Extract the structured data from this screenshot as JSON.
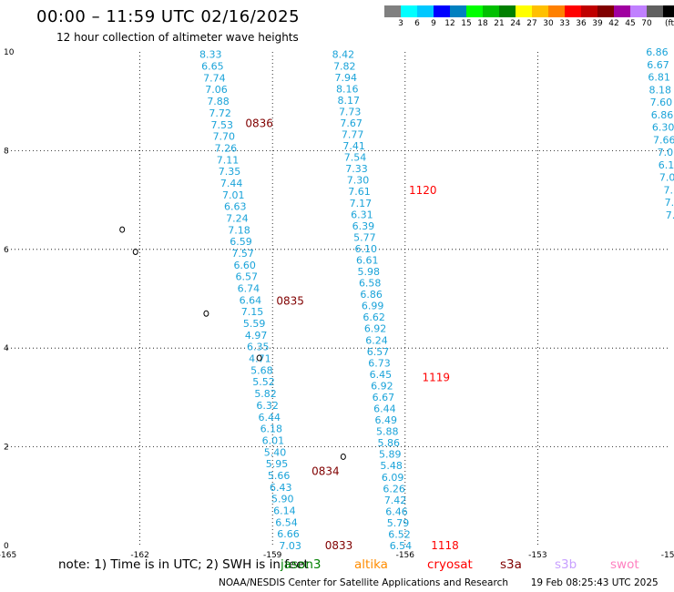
{
  "title": "00:00 – 11:59 UTC 02/16/2025",
  "subtitle": "12 hour collection of altimeter wave heights",
  "colorbar": {
    "unit": "(ft)",
    "colors": [
      "#808080",
      "#00ffff",
      "#00c8ff",
      "#0000ff",
      "#0080c0",
      "#00ff00",
      "#00c000",
      "#008000",
      "#ffff00",
      "#ffc000",
      "#ff8000",
      "#ff0000",
      "#c00000",
      "#800000",
      "#a000a0",
      "#c080ff",
      "#606060",
      "#000000"
    ],
    "ticks": [
      "3",
      "6",
      "9",
      "12",
      "15",
      "18",
      "21",
      "24",
      "27",
      "30",
      "33",
      "36",
      "39",
      "42",
      "45",
      "70"
    ]
  },
  "chart_data": {
    "type": "scatter",
    "xaxis": {
      "range": [
        -165,
        -150
      ],
      "tick_labels": [
        "-165",
        "-162",
        "-159",
        "-156",
        "-153",
        "-150"
      ],
      "ticks": [
        -165,
        -162,
        -159,
        -156,
        -153,
        -150
      ]
    },
    "yaxis": {
      "range": [
        0,
        10
      ],
      "tick_labels": [
        "0",
        "2",
        "4",
        "6",
        "8",
        "10"
      ],
      "ticks": [
        0,
        2,
        4,
        6,
        8,
        10
      ]
    },
    "grid": true,
    "tracks": [
      {
        "color": "#1aa3d9",
        "lon_start": -160.4,
        "lat_start": 9.95,
        "lon_end": -158.6,
        "lat_end": 0.0,
        "values": [
          "8.33",
          "6.65",
          "7.74",
          "7.06",
          "7.88",
          "7.72",
          "7.53",
          "7.70",
          "7.26",
          "7.11",
          "7.35",
          "7.44",
          "7.01",
          "6.63",
          "7.24",
          "7.18",
          "6.59",
          "7.57",
          "6.60",
          "6.57",
          "6.74",
          "6.64",
          "7.15",
          "5.59",
          "4.97",
          "6.35",
          "4.71",
          "5.68",
          "5.52",
          "5.82",
          "6.32",
          "6.44",
          "6.18",
          "6.01",
          "5.40",
          "5.95",
          "5.66",
          "6.43",
          "5.90",
          "6.14",
          "6.54",
          "6.66",
          "7.03"
        ]
      },
      {
        "color": "#1aa3d9",
        "lon_start": -157.4,
        "lat_start": 9.95,
        "lon_end": -156.1,
        "lat_end": 0.0,
        "values": [
          "8.42",
          "7.82",
          "7.94",
          "8.16",
          "8.17",
          "7.73",
          "7.67",
          "7.77",
          "7.41",
          "7.54",
          "7.33",
          "7.30",
          "7.61",
          "7.17",
          "6.31",
          "6.39",
          "5.77",
          "6.10",
          "6.61",
          "5.98",
          "6.58",
          "6.86",
          "6.99",
          "6.62",
          "6.92",
          "6.24",
          "6.57",
          "6.73",
          "6.45",
          "6.92",
          "6.67",
          "6.44",
          "6.49",
          "5.88",
          "5.86",
          "5.89",
          "5.48",
          "6.09",
          "6.26",
          "7.42",
          "6.46",
          "5.79",
          "6.52",
          "6.54"
        ]
      },
      {
        "color": "#1aa3d9",
        "lon_start": -150.3,
        "lat_start": 10.0,
        "lon_end": -150.0,
        "lat_end": 6.7,
        "values": [
          "6.86",
          "6.67",
          "6.81",
          "8.18",
          "7.60",
          "6.86",
          "6.30",
          "7.66",
          "7.0",
          "6.1",
          "7.0",
          "7.",
          "7.",
          "7."
        ]
      }
    ],
    "time_labels": [
      {
        "text": "0836",
        "lon": -159.3,
        "lat": 8.55,
        "color": "#800000"
      },
      {
        "text": "0835",
        "lon": -158.6,
        "lat": 4.95,
        "color": "#800000"
      },
      {
        "text": "0834",
        "lon": -157.8,
        "lat": 1.5,
        "color": "#800000"
      },
      {
        "text": "0833",
        "lon": -157.5,
        "lat": 0.0,
        "color": "#800000"
      },
      {
        "text": "1120",
        "lon": -155.6,
        "lat": 7.2,
        "color": "#ff0000"
      },
      {
        "text": "1119",
        "lon": -155.3,
        "lat": 3.4,
        "color": "#ff0000"
      },
      {
        "text": "1118",
        "lon": -155.1,
        "lat": 0.0,
        "color": "#ff0000"
      }
    ],
    "islands": [
      {
        "name": "islet-a",
        "lon": -162.4,
        "lat": 6.4
      },
      {
        "name": "islet-b",
        "lon": -162.1,
        "lat": 5.95
      },
      {
        "name": "islet-c",
        "lon": -160.5,
        "lat": 4.7
      },
      {
        "name": "islet-d",
        "lon": -159.3,
        "lat": 3.8
      },
      {
        "name": "islet-e",
        "lon": -157.4,
        "lat": 1.8
      }
    ]
  },
  "note": {
    "text": "note:  1) Time is in UTC; 2) SWH is in feet",
    "satellites": [
      {
        "name": "jason3",
        "color": "#008000"
      },
      {
        "name": "altika",
        "color": "#ff8c00"
      },
      {
        "name": "cryosat",
        "color": "#ff0000"
      },
      {
        "name": "s3a",
        "color": "#800000"
      },
      {
        "name": "s3b",
        "color": "#c8a0ff"
      },
      {
        "name": "swot",
        "color": "#ff80c0"
      }
    ]
  },
  "footer": {
    "org": "NOAA/NESDIS Center for Satellite Applications and Research",
    "timestamp": "19 Feb 08:25:43 UTC 2025"
  }
}
